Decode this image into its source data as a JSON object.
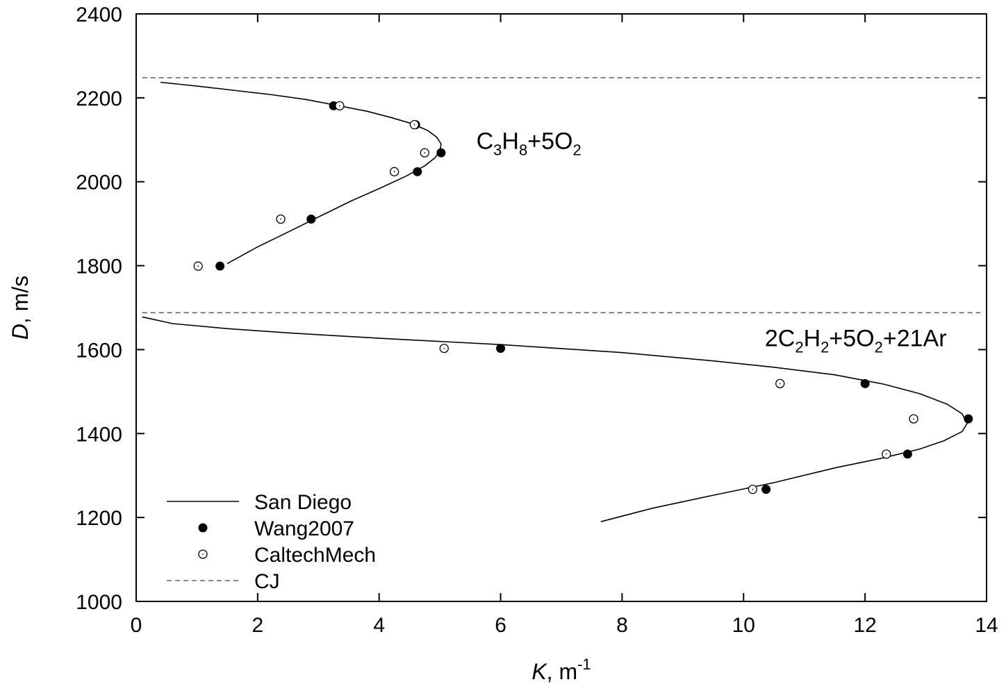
{
  "chart_data": {
    "type": "scatter",
    "xlabel": {
      "var": "K",
      "sep": ", ",
      "unit": "m",
      "exp": "-1"
    },
    "ylabel": {
      "var": "D",
      "unit": ", m/s"
    },
    "xlim": [
      0,
      14
    ],
    "ylim": [
      1000,
      2400
    ],
    "xticks": [
      0,
      2,
      4,
      6,
      8,
      10,
      12,
      14
    ],
    "yticks": [
      1000,
      1200,
      1400,
      1600,
      1800,
      2000,
      2200,
      2400
    ],
    "legend": {
      "position": "bottom-left",
      "items": [
        {
          "label": "San Diego",
          "style": "solid-line"
        },
        {
          "label": "Wang2007",
          "style": "filled-circle"
        },
        {
          "label": "CaltechMech",
          "style": "open-circle"
        },
        {
          "label": "CJ",
          "style": "dashed-line"
        }
      ]
    },
    "annotations": [
      {
        "mixture": "C3H8+5O2",
        "parts": [
          {
            "t": "C",
            "sub": false
          },
          {
            "t": "3",
            "sub": true
          },
          {
            "t": "H",
            "sub": false
          },
          {
            "t": "8",
            "sub": true
          },
          {
            "t": "+5O",
            "sub": false
          },
          {
            "t": "2",
            "sub": true
          }
        ],
        "anchor": [
          5.6,
          2078
        ]
      },
      {
        "mixture": "2C2H2+5O2+21Ar",
        "parts": [
          {
            "t": "2C",
            "sub": false
          },
          {
            "t": "2",
            "sub": true
          },
          {
            "t": "H",
            "sub": false
          },
          {
            "t": "2",
            "sub": true
          },
          {
            "t": "+5O",
            "sub": false
          },
          {
            "t": "2",
            "sub": true
          },
          {
            "t": "+21Ar",
            "sub": false
          }
        ],
        "anchor": [
          10.35,
          1608
        ]
      }
    ],
    "series": [
      {
        "name": "CJ",
        "style": "dashed",
        "group": "C3H8",
        "x": [
          0.1,
          13.9
        ],
        "y": [
          2248,
          2248
        ]
      },
      {
        "name": "CJ",
        "style": "dashed",
        "group": "C2H2",
        "x": [
          0.1,
          13.9
        ],
        "y": [
          1688,
          1688
        ]
      },
      {
        "name": "San Diego",
        "style": "line",
        "group": "C3H8",
        "x": [
          0.4,
          1.0,
          1.6,
          2.2,
          2.8,
          3.3,
          3.8,
          4.2,
          4.55,
          4.8,
          4.95,
          5.02,
          5.0,
          4.92,
          4.75,
          4.45,
          4.05,
          3.55,
          3.0,
          2.5,
          2.0,
          1.5
        ],
        "y": [
          2237,
          2228,
          2218,
          2208,
          2196,
          2182,
          2168,
          2153,
          2138,
          2122,
          2106,
          2090,
          2073,
          2057,
          2038,
          2014,
          1987,
          1955,
          1916,
          1880,
          1845,
          1805
        ]
      },
      {
        "name": "San Diego",
        "style": "line",
        "group": "C2H2",
        "x": [
          0.1,
          0.6,
          1.5,
          2.5,
          4.0,
          6.0,
          8.0,
          9.5,
          10.5,
          11.5,
          12.3,
          12.9,
          13.35,
          13.6,
          13.68,
          13.6,
          13.3,
          12.9,
          12.3,
          11.5,
          10.5,
          9.5,
          8.5,
          7.65
        ],
        "y": [
          1678,
          1662,
          1650,
          1640,
          1627,
          1612,
          1593,
          1573,
          1558,
          1540,
          1518,
          1495,
          1470,
          1447,
          1424,
          1405,
          1383,
          1363,
          1342,
          1318,
          1283,
          1253,
          1222,
          1190
        ]
      },
      {
        "name": "Wang2007",
        "style": "filled",
        "group": "C3H8",
        "x": [
          3.25,
          4.6,
          5.02,
          4.63,
          2.88,
          1.38
        ],
        "y": [
          2181,
          2136,
          2069,
          2024,
          1911,
          1799
        ]
      },
      {
        "name": "Wang2007",
        "style": "filled",
        "group": "C2H2",
        "x": [
          6.0,
          12.0,
          13.7,
          12.7,
          10.37
        ],
        "y": [
          1603,
          1519,
          1435,
          1351,
          1267
        ]
      },
      {
        "name": "CaltechMech",
        "style": "open",
        "group": "C3H8",
        "x": [
          3.35,
          4.58,
          4.75,
          4.25,
          2.38,
          1.02
        ],
        "y": [
          2181,
          2136,
          2069,
          2024,
          1911,
          1799
        ]
      },
      {
        "name": "CaltechMech",
        "style": "open",
        "group": "C2H2",
        "x": [
          5.07,
          10.6,
          12.8,
          12.35,
          10.15
        ],
        "y": [
          1603,
          1519,
          1435,
          1351,
          1267
        ]
      }
    ]
  }
}
